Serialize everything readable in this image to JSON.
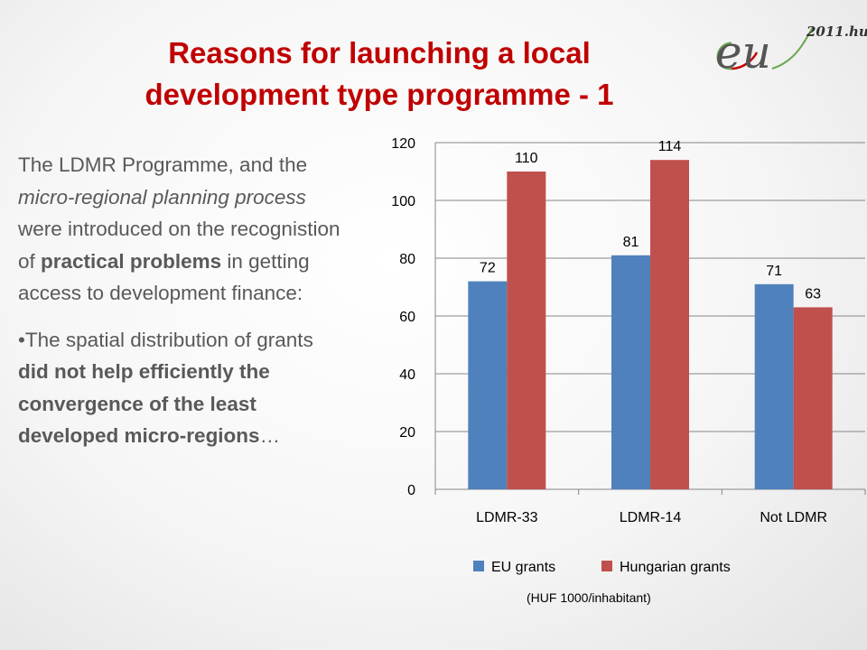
{
  "slide": {
    "title_line1": "Reasons for launching a local",
    "title_line2": "development type programme - 1",
    "logo_letters": "eu",
    "logo_suffix": "2011.hu",
    "para1": {
      "t1": "The LDMR Programme, and the ",
      "t2": "micro-regional planning process",
      "t3": " were introduced on the recognistion of ",
      "t4": "practical problems",
      "t5": " in getting access to development finance:"
    },
    "para2": {
      "bullet": "•",
      "t1": "The spatial distribution of grants ",
      "t2": "did not help efficiently the convergence of the least developed micro-regions",
      "t3": "…"
    },
    "unit_note": "(HUF 1000/inhabitant)"
  },
  "colors": {
    "title": "#c00000",
    "body_text": "#595959",
    "eu_series": "#4f81bd",
    "hu_series": "#c0504d"
  },
  "chart_data": {
    "type": "bar",
    "categories": [
      "LDMR-33",
      "LDMR-14",
      "Not LDMR"
    ],
    "series": [
      {
        "name": "EU grants",
        "values": [
          72,
          81,
          71
        ],
        "labels": [
          "72",
          "81",
          "71"
        ],
        "color": "#4f81bd"
      },
      {
        "name": "Hungarian grants",
        "values": [
          110,
          114,
          63
        ],
        "labels": [
          "110",
          "114",
          "63"
        ],
        "color": "#c0504d"
      }
    ],
    "ylim": [
      0,
      120
    ],
    "yticks": [
      0,
      20,
      40,
      60,
      80,
      100,
      120
    ],
    "grid": true,
    "legend_position": "bottom",
    "title": "",
    "xlabel": "",
    "ylabel": ""
  }
}
